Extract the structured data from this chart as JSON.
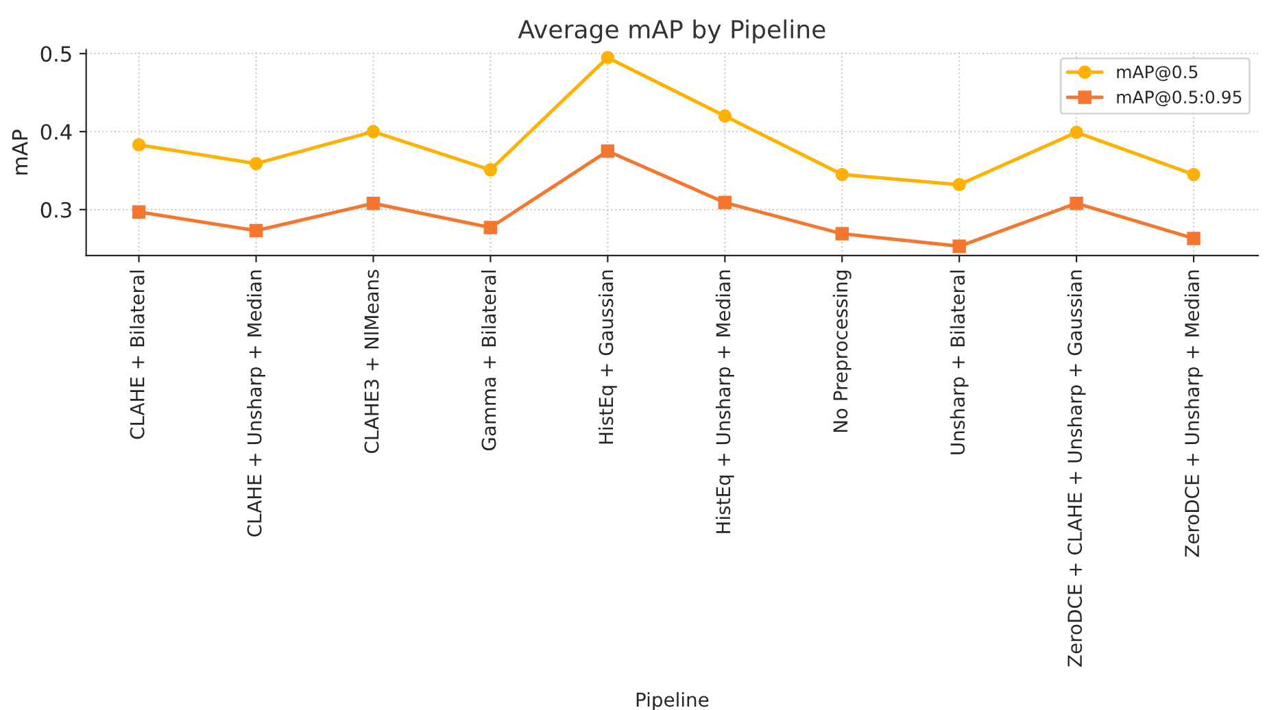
{
  "chart_data": {
    "type": "line",
    "title": "Average mAP by Pipeline",
    "xlabel": "Pipeline",
    "ylabel": "mAP",
    "categories": [
      "CLAHE + Bilateral",
      "CLAHE + Unsharp + Median",
      "CLAHE3 + NlMeans",
      "Gamma + Bilateral",
      "HistEq + Gaussian",
      "HistEq + Unsharp + Median",
      "No Preprocessing",
      "Unsharp + Bilateral",
      "ZeroDCE + CLAHE + Unsharp + Gaussian",
      "ZeroDCE + Unsharp + Median"
    ],
    "series": [
      {
        "name": "mAP@0.5",
        "color": "#ffb000",
        "marker": "circle",
        "values": [
          0.383,
          0.359,
          0.4,
          0.351,
          0.495,
          0.42,
          0.345,
          0.332,
          0.399,
          0.345
        ]
      },
      {
        "name": "mAP@0.5:0.95",
        "color": "#f5762e",
        "marker": "square",
        "values": [
          0.297,
          0.273,
          0.308,
          0.277,
          0.375,
          0.309,
          0.269,
          0.253,
          0.308,
          0.263
        ]
      }
    ],
    "ylim": [
      0.241,
      0.505
    ],
    "yticks": [
      0.3,
      0.4,
      0.5
    ],
    "grid": true,
    "legend": "top right",
    "line_style": "solid"
  }
}
